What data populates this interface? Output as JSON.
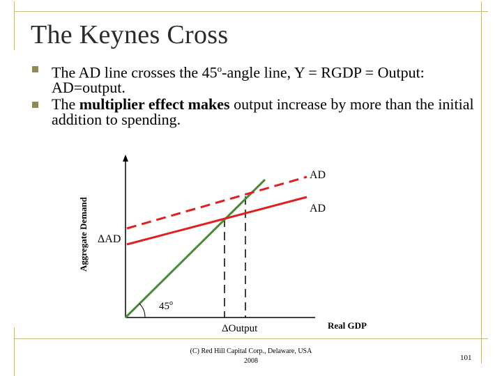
{
  "slide": {
    "title": "The Keynes Cross",
    "bullets": [
      {
        "pre": "The AD line crosses the 45",
        "sup": "o",
        "post": "-angle line, Y = RGDP = Output: AD=output."
      },
      {
        "pre": "The ",
        "bold": "multiplier effect makes",
        "post": " output increase by more than the initial addition to spending."
      }
    ],
    "footer_line1": "(C) Red Hill Capital Corp., Delaware, USA",
    "footer_line2": "2008",
    "page_number": "101"
  },
  "diagram": {
    "y_axis_label": "Aggregate Demand",
    "x_axis_label": "Real GDP",
    "ad_upper_label": "AD",
    "ad_lower_label": "AD",
    "delta_ad_label": "ΔAD",
    "angle_label": "45",
    "angle_sup": "o",
    "delta_output_label": "ΔOutput",
    "colors": {
      "ad_line": "#e02020",
      "forty_five_line": "#4a8a3a",
      "frame": "#c8b87a",
      "bullet": "#8f8a5a"
    }
  }
}
